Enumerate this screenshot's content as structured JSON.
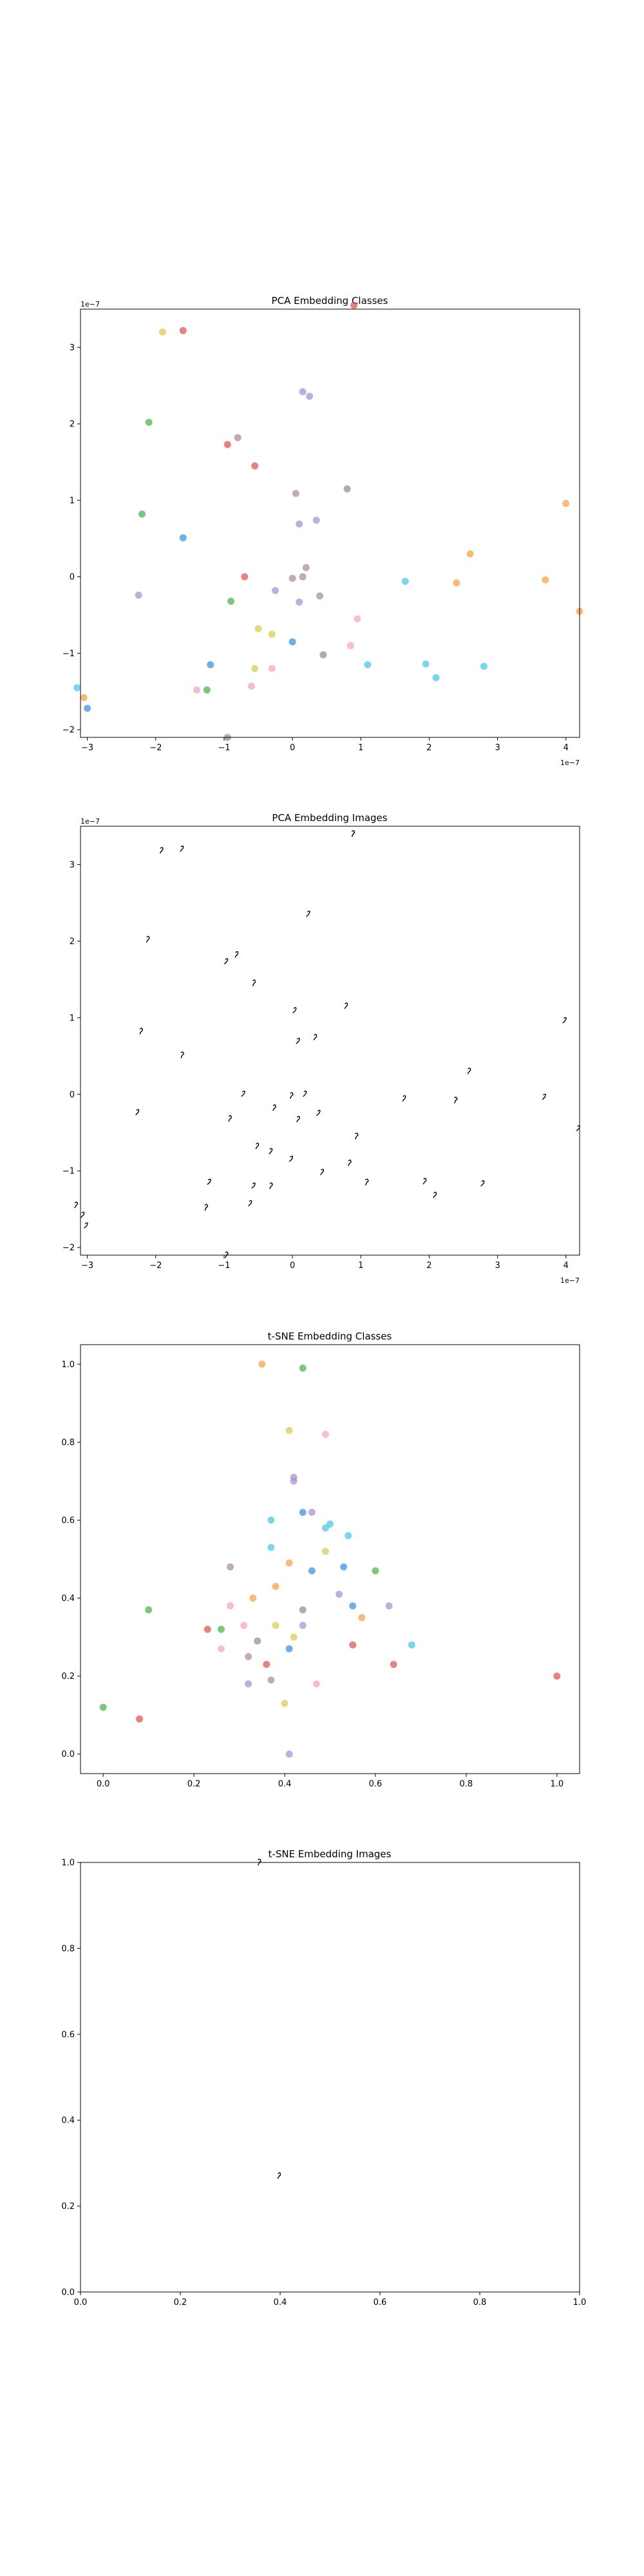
{
  "chart_data": [
    {
      "type": "scatter",
      "title": "PCA Embedding Classes",
      "xlim": [
        -3.1,
        4.2
      ],
      "ylim": [
        -2.1,
        3.5
      ],
      "xticks": [
        "−3",
        "−2",
        "−1",
        "0",
        "1",
        "2",
        "3",
        "4"
      ],
      "yticks": [
        "−2",
        "−1",
        "0",
        "1",
        "2",
        "3"
      ],
      "x_offset_label": "1e−7",
      "y_offset_label": "1e−7",
      "grid": false,
      "marker_alpha": 0.7,
      "points": [
        {
          "x": -1.6,
          "y": 3.22,
          "c": "#e34a4a"
        },
        {
          "x": -1.9,
          "y": 3.2,
          "c": "#d4cc4a"
        },
        {
          "x": 0.9,
          "y": 3.55,
          "c": "#e34a4a"
        },
        {
          "x": 0.15,
          "y": 2.42,
          "c": "#a78bd4"
        },
        {
          "x": 0.25,
          "y": 2.36,
          "c": "#a78bd4"
        },
        {
          "x": -2.1,
          "y": 2.02,
          "c": "#43b043"
        },
        {
          "x": -0.8,
          "y": 1.82,
          "c": "#a88a8a"
        },
        {
          "x": -0.95,
          "y": 1.73,
          "c": "#e34a4a"
        },
        {
          "x": -0.55,
          "y": 1.45,
          "c": "#e34a4a"
        },
        {
          "x": 0.8,
          "y": 1.15,
          "c": "#8a8a8a"
        },
        {
          "x": 0.05,
          "y": 1.09,
          "c": "#a88a8a"
        },
        {
          "x": 4.0,
          "y": 0.96,
          "c": "#f5a040"
        },
        {
          "x": -2.2,
          "y": 0.82,
          "c": "#43b043"
        },
        {
          "x": 0.35,
          "y": 0.74,
          "c": "#a78bd4"
        },
        {
          "x": 0.1,
          "y": 0.69,
          "c": "#a78bd4"
        },
        {
          "x": -1.6,
          "y": 0.51,
          "c": "#2f8ee0"
        },
        {
          "x": 2.6,
          "y": 0.3,
          "c": "#f5a040"
        },
        {
          "x": 0.2,
          "y": 0.12,
          "c": "#a88a8a"
        },
        {
          "x": -0.7,
          "y": 0.0,
          "c": "#e34a4a"
        },
        {
          "x": 0.0,
          "y": -0.02,
          "c": "#a88a8a"
        },
        {
          "x": 0.15,
          "y": 0.0,
          "c": "#a88a8a"
        },
        {
          "x": 1.65,
          "y": -0.06,
          "c": "#3fc8e0"
        },
        {
          "x": 3.7,
          "y": -0.04,
          "c": "#f5a040"
        },
        {
          "x": 2.4,
          "y": -0.08,
          "c": "#f5a040"
        },
        {
          "x": -0.25,
          "y": -0.18,
          "c": "#a78bd4"
        },
        {
          "x": -2.25,
          "y": -0.24,
          "c": "#a78bd4"
        },
        {
          "x": 0.4,
          "y": -0.25,
          "c": "#a88a8a"
        },
        {
          "x": -0.9,
          "y": -0.32,
          "c": "#43b043"
        },
        {
          "x": 0.1,
          "y": -0.33,
          "c": "#a78bd4"
        },
        {
          "x": 4.2,
          "y": -0.45,
          "c": "#f5a040"
        },
        {
          "x": 0.95,
          "y": -0.55,
          "c": "#f5a0c8"
        },
        {
          "x": -0.5,
          "y": -0.68,
          "c": "#d4cc4a"
        },
        {
          "x": -0.3,
          "y": -0.75,
          "c": "#d4cc4a"
        },
        {
          "x": 0.0,
          "y": -0.85,
          "c": "#2f8ee0"
        },
        {
          "x": 0.85,
          "y": -0.9,
          "c": "#f5a0c8"
        },
        {
          "x": 0.45,
          "y": -1.02,
          "c": "#8a8a8a"
        },
        {
          "x": -1.2,
          "y": -1.15,
          "c": "#2f8ee0"
        },
        {
          "x": 1.1,
          "y": -1.15,
          "c": "#3fc8e0"
        },
        {
          "x": 1.95,
          "y": -1.14,
          "c": "#3fc8e0"
        },
        {
          "x": 2.8,
          "y": -1.17,
          "c": "#3fc8e0"
        },
        {
          "x": -0.55,
          "y": -1.2,
          "c": "#d4cc4a"
        },
        {
          "x": -0.3,
          "y": -1.2,
          "c": "#f5a0c8"
        },
        {
          "x": 2.1,
          "y": -1.32,
          "c": "#3fc8e0"
        },
        {
          "x": -0.6,
          "y": -1.43,
          "c": "#f5a0c8"
        },
        {
          "x": -1.4,
          "y": -1.48,
          "c": "#f5a0c8"
        },
        {
          "x": -1.25,
          "y": -1.48,
          "c": "#43b043"
        },
        {
          "x": -3.15,
          "y": -1.45,
          "c": "#3fc8e0"
        },
        {
          "x": -3.05,
          "y": -1.58,
          "c": "#f5a040"
        },
        {
          "x": -3.0,
          "y": -1.72,
          "c": "#2f8ee0"
        },
        {
          "x": -0.95,
          "y": -2.1,
          "c": "#8a8a8a"
        }
      ]
    },
    {
      "type": "scatter",
      "title": "PCA Embedding Images",
      "xlim": [
        -3.1,
        4.2
      ],
      "ylim": [
        -2.1,
        3.5
      ],
      "xticks": [
        "−3",
        "−2",
        "−1",
        "0",
        "1",
        "2",
        "3",
        "4"
      ],
      "yticks": [
        "−2",
        "−1",
        "0",
        "1",
        "2",
        "3"
      ],
      "x_offset_label": "1e−7",
      "y_offset_label": "1e−7",
      "grid": false,
      "marker": "small handwritten digit image at each point",
      "points": [
        {
          "x": 0.9,
          "y": 3.4
        },
        {
          "x": -1.9,
          "y": 3.18
        },
        {
          "x": -1.6,
          "y": 3.2
        },
        {
          "x": 0.25,
          "y": 2.35
        },
        {
          "x": -2.1,
          "y": 2.02
        },
        {
          "x": -0.8,
          "y": 1.82
        },
        {
          "x": -0.95,
          "y": 1.73
        },
        {
          "x": -0.55,
          "y": 1.45
        },
        {
          "x": 0.8,
          "y": 1.15
        },
        {
          "x": 0.05,
          "y": 1.09
        },
        {
          "x": 4.0,
          "y": 0.96
        },
        {
          "x": -2.2,
          "y": 0.82
        },
        {
          "x": 0.35,
          "y": 0.74
        },
        {
          "x": 0.1,
          "y": 0.69
        },
        {
          "x": -1.6,
          "y": 0.51
        },
        {
          "x": 2.6,
          "y": 0.3
        },
        {
          "x": 0.2,
          "y": 0.0
        },
        {
          "x": -0.7,
          "y": 0.0
        },
        {
          "x": 0.0,
          "y": -0.02
        },
        {
          "x": 1.65,
          "y": -0.06
        },
        {
          "x": 3.7,
          "y": -0.04
        },
        {
          "x": 2.4,
          "y": -0.08
        },
        {
          "x": -0.25,
          "y": -0.18
        },
        {
          "x": -2.25,
          "y": -0.24
        },
        {
          "x": 0.4,
          "y": -0.25
        },
        {
          "x": -0.9,
          "y": -0.32
        },
        {
          "x": 0.1,
          "y": -0.33
        },
        {
          "x": 4.2,
          "y": -0.45
        },
        {
          "x": 0.95,
          "y": -0.55
        },
        {
          "x": -0.5,
          "y": -0.68
        },
        {
          "x": -0.3,
          "y": -0.75
        },
        {
          "x": 0.0,
          "y": -0.85
        },
        {
          "x": 0.85,
          "y": -0.9
        },
        {
          "x": 0.45,
          "y": -1.02
        },
        {
          "x": -1.2,
          "y": -1.15
        },
        {
          "x": 1.1,
          "y": -1.15
        },
        {
          "x": 1.95,
          "y": -1.14
        },
        {
          "x": 2.8,
          "y": -1.17
        },
        {
          "x": -0.55,
          "y": -1.2
        },
        {
          "x": -0.3,
          "y": -1.2
        },
        {
          "x": 2.1,
          "y": -1.32
        },
        {
          "x": -0.6,
          "y": -1.43
        },
        {
          "x": -1.25,
          "y": -1.48
        },
        {
          "x": -3.15,
          "y": -1.45
        },
        {
          "x": -3.05,
          "y": -1.58
        },
        {
          "x": -3.0,
          "y": -1.72
        },
        {
          "x": -0.95,
          "y": -2.1
        }
      ]
    },
    {
      "type": "scatter",
      "title": "t-SNE Embedding Classes",
      "xlim": [
        -0.05,
        1.05
      ],
      "ylim": [
        -0.05,
        1.05
      ],
      "xticks": [
        "0.0",
        "0.2",
        "0.4",
        "0.6",
        "0.8",
        "1.0"
      ],
      "yticks": [
        "0.0",
        "0.2",
        "0.4",
        "0.6",
        "0.8",
        "1.0"
      ],
      "grid": false,
      "marker_alpha": 0.7,
      "points": [
        {
          "x": 0.35,
          "y": 1.0,
          "c": "#f5a040"
        },
        {
          "x": 0.44,
          "y": 0.99,
          "c": "#43b043"
        },
        {
          "x": 0.41,
          "y": 0.83,
          "c": "#d4cc4a"
        },
        {
          "x": 0.49,
          "y": 0.82,
          "c": "#f5a0c8"
        },
        {
          "x": 0.42,
          "y": 0.71,
          "c": "#a78bd4"
        },
        {
          "x": 0.42,
          "y": 0.7,
          "c": "#a78bd4"
        },
        {
          "x": 0.44,
          "y": 0.62,
          "c": "#2f8ee0"
        },
        {
          "x": 0.46,
          "y": 0.62,
          "c": "#a78bd4"
        },
        {
          "x": 0.37,
          "y": 0.6,
          "c": "#3fc8e0"
        },
        {
          "x": 0.5,
          "y": 0.59,
          "c": "#3fc8e0"
        },
        {
          "x": 0.49,
          "y": 0.58,
          "c": "#3fc8e0"
        },
        {
          "x": 0.54,
          "y": 0.56,
          "c": "#3fc8e0"
        },
        {
          "x": 0.37,
          "y": 0.53,
          "c": "#3fc8e0"
        },
        {
          "x": 0.49,
          "y": 0.52,
          "c": "#d4cc4a"
        },
        {
          "x": 0.41,
          "y": 0.49,
          "c": "#f5a040"
        },
        {
          "x": 0.28,
          "y": 0.48,
          "c": "#a88a8a"
        },
        {
          "x": 0.46,
          "y": 0.47,
          "c": "#2f8ee0"
        },
        {
          "x": 0.53,
          "y": 0.48,
          "c": "#2f8ee0"
        },
        {
          "x": 0.6,
          "y": 0.47,
          "c": "#43b043"
        },
        {
          "x": 0.38,
          "y": 0.43,
          "c": "#f5a040"
        },
        {
          "x": 0.52,
          "y": 0.41,
          "c": "#a78bd4"
        },
        {
          "x": 0.33,
          "y": 0.4,
          "c": "#f5a040"
        },
        {
          "x": 0.1,
          "y": 0.37,
          "c": "#43b043"
        },
        {
          "x": 0.44,
          "y": 0.37,
          "c": "#8a8a8a"
        },
        {
          "x": 0.28,
          "y": 0.38,
          "c": "#f5a0c8"
        },
        {
          "x": 0.55,
          "y": 0.38,
          "c": "#2f8ee0"
        },
        {
          "x": 0.63,
          "y": 0.38,
          "c": "#a78bd4"
        },
        {
          "x": 0.57,
          "y": 0.35,
          "c": "#f5a040"
        },
        {
          "x": 0.38,
          "y": 0.33,
          "c": "#d4cc4a"
        },
        {
          "x": 0.31,
          "y": 0.33,
          "c": "#f5a0c8"
        },
        {
          "x": 0.44,
          "y": 0.33,
          "c": "#a78bd4"
        },
        {
          "x": 0.23,
          "y": 0.32,
          "c": "#e34a4a"
        },
        {
          "x": 0.26,
          "y": 0.32,
          "c": "#43b043"
        },
        {
          "x": 0.42,
          "y": 0.3,
          "c": "#d4cc4a"
        },
        {
          "x": 0.34,
          "y": 0.29,
          "c": "#8a8a8a"
        },
        {
          "x": 0.55,
          "y": 0.28,
          "c": "#e34a4a"
        },
        {
          "x": 0.68,
          "y": 0.28,
          "c": "#3fc8e0"
        },
        {
          "x": 0.26,
          "y": 0.27,
          "c": "#f5a0c8"
        },
        {
          "x": 0.41,
          "y": 0.27,
          "c": "#2f8ee0"
        },
        {
          "x": 0.32,
          "y": 0.25,
          "c": "#a88a8a"
        },
        {
          "x": 0.36,
          "y": 0.23,
          "c": "#e34a4a"
        },
        {
          "x": 0.64,
          "y": 0.23,
          "c": "#e34a4a"
        },
        {
          "x": 1.0,
          "y": 0.2,
          "c": "#e34a4a"
        },
        {
          "x": 0.37,
          "y": 0.19,
          "c": "#a88a8a"
        },
        {
          "x": 0.47,
          "y": 0.18,
          "c": "#f5a0c8"
        },
        {
          "x": 0.32,
          "y": 0.18,
          "c": "#a78bd4"
        },
        {
          "x": 0.4,
          "y": 0.13,
          "c": "#d4cc4a"
        },
        {
          "x": 0.0,
          "y": 0.12,
          "c": "#43b043"
        },
        {
          "x": 0.08,
          "y": 0.09,
          "c": "#e34a4a"
        },
        {
          "x": 0.41,
          "y": 0.0,
          "c": "#a78bd4"
        }
      ]
    },
    {
      "type": "scatter",
      "title": "t-SNE Embedding Images",
      "xlim": [
        0.0,
        1.0
      ],
      "ylim": [
        0.0,
        1.0
      ],
      "xticks": [
        "0.0",
        "0.2",
        "0.4",
        "0.6",
        "0.8",
        "1.0"
      ],
      "yticks": [
        "0.0",
        "0.2",
        "0.4",
        "0.6",
        "0.8",
        "1.0"
      ],
      "grid": false,
      "marker": "small handwritten digit image at each point",
      "points": [
        {
          "x": 0.36,
          "y": 1.0
        },
        {
          "x": 0.4,
          "y": 0.27
        }
      ]
    }
  ]
}
